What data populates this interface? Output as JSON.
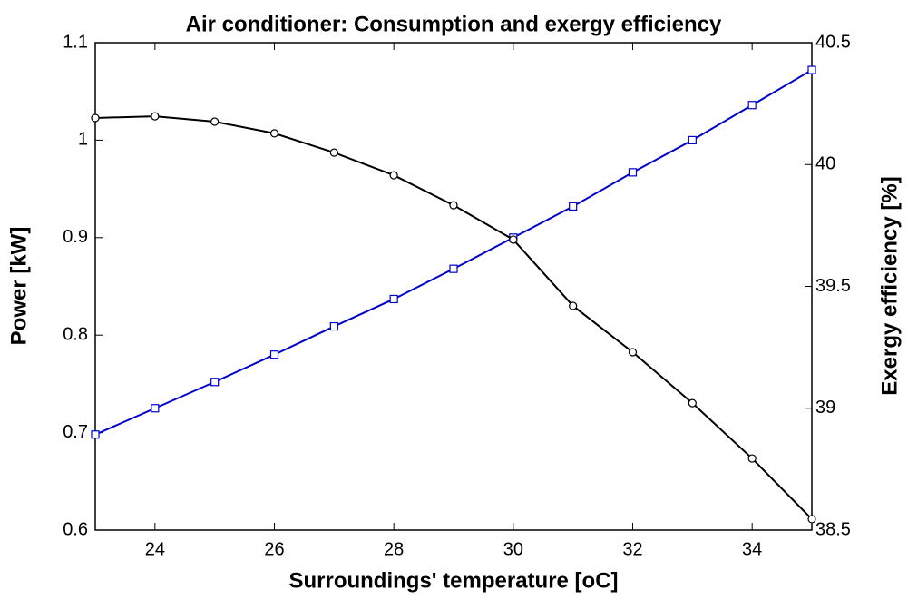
{
  "chart_data": {
    "type": "line",
    "title": "Air conditioner: Consumption and exergy efficiency",
    "x_label": "Surroundings' temperature [oC]",
    "y_label": "Power [kW]",
    "y2_label": "Exergy efficiency [%]",
    "y_label_color": "#0000ff",
    "x": [
      23,
      24,
      25,
      26,
      27,
      28,
      29,
      30,
      31,
      32,
      33,
      34,
      35
    ],
    "xlim": [
      23,
      35
    ],
    "xticks": [
      24,
      26,
      28,
      30,
      32,
      34
    ],
    "ylim": [
      0.6,
      1.1
    ],
    "yticks": [
      0.6,
      0.7,
      0.8,
      0.9,
      1,
      1.1
    ],
    "y2lim": [
      38.5,
      40.5
    ],
    "y2ticks": [
      38.5,
      39,
      39.5,
      40,
      40.5
    ],
    "series": [
      {
        "name": "Power",
        "color": "#0000cc",
        "marker": "square",
        "values": [
          0.698,
          0.725,
          0.752,
          0.78,
          0.809,
          0.837,
          0.868,
          0.9,
          0.932,
          0.967,
          1.0,
          1.036,
          1.072
        ]
      },
      {
        "name": "Exergy efficiency",
        "color": "#000000",
        "marker": "circle",
        "axis": "y2",
        "values": [
          40.191,
          40.198,
          40.176,
          40.128,
          40.049,
          39.956,
          39.833,
          39.692,
          39.42,
          39.23,
          39.021,
          38.794,
          38.545
        ]
      }
    ]
  }
}
